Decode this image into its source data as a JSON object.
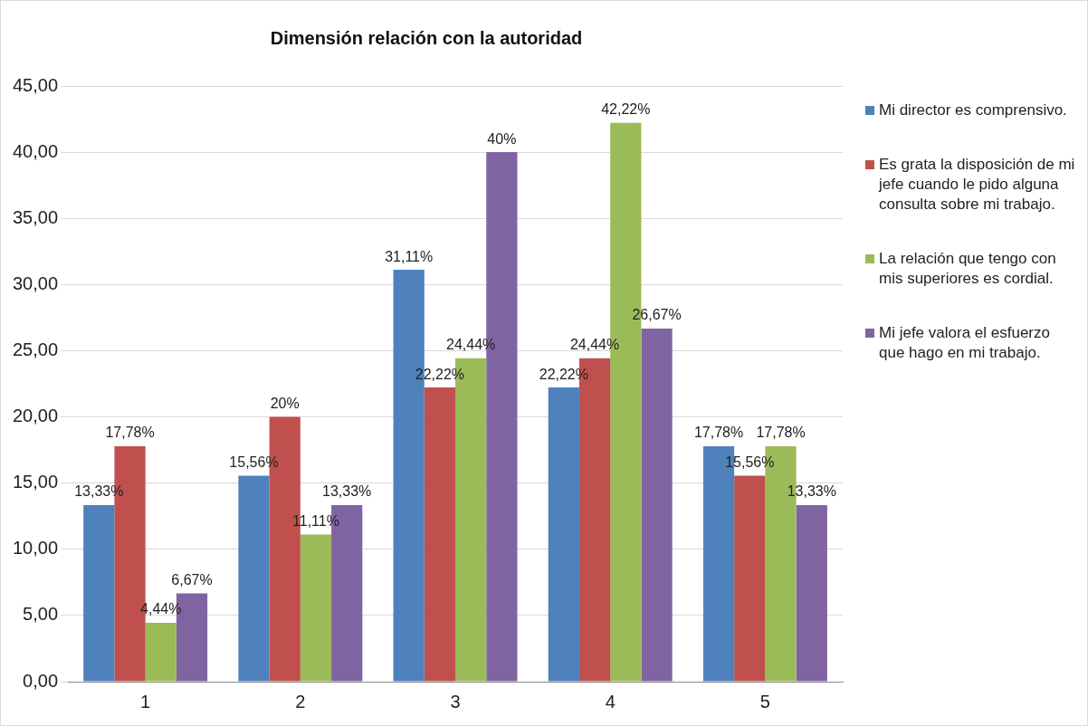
{
  "chart_data": {
    "type": "bar",
    "title": "Dimensión relación con la autoridad",
    "categories": [
      "1",
      "2",
      "3",
      "4",
      "5"
    ],
    "series": [
      {
        "name": "Mi director es comprensivo.",
        "color": "#4f81bd",
        "values": [
          13.33,
          15.56,
          31.11,
          22.22,
          17.78
        ],
        "value_labels": [
          "13,33%",
          "15,56%",
          "31,11%",
          "22,22%",
          "17,78%"
        ]
      },
      {
        "name": "Es grata la disposición de mi jefe cuando le pido alguna consulta sobre mi trabajo.",
        "color": "#c0504d",
        "values": [
          17.78,
          20,
          22.22,
          24.44,
          15.56
        ],
        "value_labels": [
          "17,78%",
          "20%",
          "22,22%",
          "24,44%",
          "15,56%"
        ]
      },
      {
        "name": "La relación que tengo con mis superiores es cordial.",
        "color": "#9bbb59",
        "values": [
          4.44,
          11.11,
          24.44,
          42.22,
          17.78
        ],
        "value_labels": [
          "4,44%",
          "11,11%",
          "24,44%",
          "42,22%",
          "17,78%"
        ]
      },
      {
        "name": "Mi jefe valora el esfuerzo que hago en mi trabajo.",
        "color": "#8064a2",
        "values": [
          6.67,
          13.33,
          40,
          26.67,
          13.33
        ],
        "value_labels": [
          "6,67%",
          "13,33%",
          "40%",
          "26,67%",
          "13,33%"
        ]
      }
    ],
    "ylim": [
      0,
      45
    ],
    "yticks": [
      {
        "value": 0,
        "label": "0,00"
      },
      {
        "value": 5,
        "label": "5,00"
      },
      {
        "value": 10,
        "label": "10,00"
      },
      {
        "value": 15,
        "label": "15,00"
      },
      {
        "value": 20,
        "label": "20,00"
      },
      {
        "value": 25,
        "label": "25,00"
      },
      {
        "value": 30,
        "label": "30,00"
      },
      {
        "value": 35,
        "label": "35,00"
      },
      {
        "value": 40,
        "label": "40,00"
      },
      {
        "value": 45,
        "label": "45,00"
      }
    ],
    "grid": "y",
    "legend": "right"
  }
}
